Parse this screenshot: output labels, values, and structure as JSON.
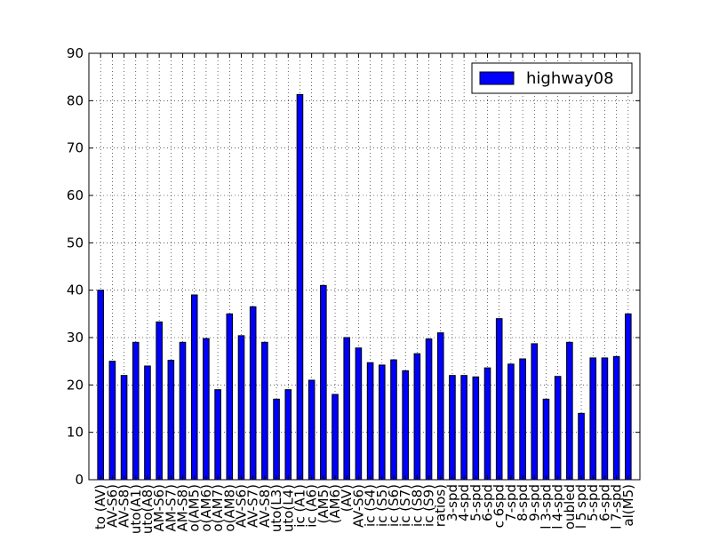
{
  "chart_data": {
    "type": "bar",
    "title": "",
    "xlabel": "",
    "ylabel": "",
    "ylim": [
      0,
      90
    ],
    "yticks": [
      0,
      10,
      20,
      30,
      40,
      50,
      60,
      70,
      80,
      90
    ],
    "grid": true,
    "legend_position": "top-right",
    "categories": [
      "to (AV)",
      "AV-S6)",
      "AV-S8)",
      "uto(A1)",
      "uto(A8)",
      "AM-S6)",
      "AM-S7)",
      "AM-S8)",
      "o(AM5)",
      "o(AM6)",
      "o(AM7)",
      "o(AM8)",
      "AV-S6)",
      "AV-S7)",
      "AV-S8)",
      "uto(L3)",
      "uto(L4)",
      "ic (A1)",
      "ic (A6)",
      "(AM5)",
      "(AM6)",
      "(AV)",
      "AV-S6)",
      "ic (S4)",
      "ic (S5)",
      "ic (S6)",
      "ic (S7)",
      "ic (S8)",
      "ic (S9)",
      "ratios)",
      "3-spd",
      "4-spd",
      "5-spd",
      "6-spd",
      "c 6spd",
      "7-spd",
      "8-spd",
      "9-spd",
      "l 3-spd",
      "l 4-spd",
      "oubled",
      "l 5 spd",
      "5-spd",
      "6-spd",
      "l 7-spd",
      "al(M5)"
    ],
    "series": [
      {
        "name": "highway08",
        "color": "#0000ff",
        "values": [
          40,
          25,
          22,
          29,
          24,
          33.3,
          25.2,
          29,
          39,
          29.8,
          19,
          35,
          30.4,
          36.5,
          29,
          17,
          19,
          81.3,
          21,
          41,
          18,
          30,
          27.8,
          24.7,
          24.2,
          25.3,
          23,
          26.6,
          29.7,
          31,
          22,
          22,
          21.7,
          23.6,
          34,
          24.4,
          25.5,
          28.7,
          17,
          21.8,
          29,
          14,
          25.7,
          25.7,
          26,
          35
        ]
      }
    ]
  }
}
